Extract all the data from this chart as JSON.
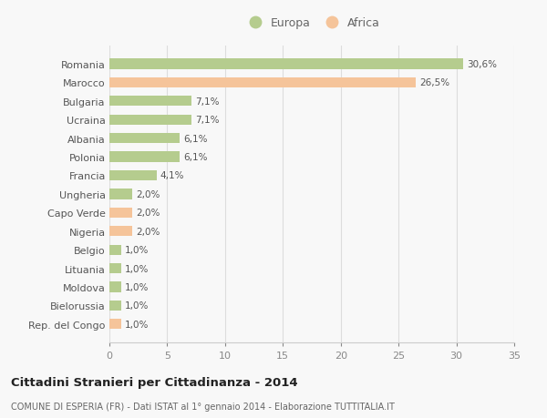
{
  "categories": [
    "Rep. del Congo",
    "Bielorussia",
    "Moldova",
    "Lituania",
    "Belgio",
    "Nigeria",
    "Capo Verde",
    "Ungheria",
    "Francia",
    "Polonia",
    "Albania",
    "Ucraina",
    "Bulgaria",
    "Marocco",
    "Romania"
  ],
  "values": [
    1.0,
    1.0,
    1.0,
    1.0,
    1.0,
    2.0,
    2.0,
    2.0,
    4.1,
    6.1,
    6.1,
    7.1,
    7.1,
    26.5,
    30.6
  ],
  "labels": [
    "1,0%",
    "1,0%",
    "1,0%",
    "1,0%",
    "1,0%",
    "2,0%",
    "2,0%",
    "2,0%",
    "4,1%",
    "6,1%",
    "6,1%",
    "7,1%",
    "7,1%",
    "26,5%",
    "30,6%"
  ],
  "colors": [
    "#f5c49a",
    "#b5cc8e",
    "#b5cc8e",
    "#b5cc8e",
    "#b5cc8e",
    "#f5c49a",
    "#f5c49a",
    "#b5cc8e",
    "#b5cc8e",
    "#b5cc8e",
    "#b5cc8e",
    "#b5cc8e",
    "#b5cc8e",
    "#f5c49a",
    "#b5cc8e"
  ],
  "europa_color": "#b5cc8e",
  "africa_color": "#f5c49a",
  "background_color": "#f8f8f8",
  "grid_color": "#dddddd",
  "title": "Cittadini Stranieri per Cittadinanza - 2014",
  "subtitle": "COMUNE DI ESPERIA (FR) - Dati ISTAT al 1° gennaio 2014 - Elaborazione TUTTITALIA.IT",
  "xlim": [
    0,
    35
  ],
  "xticks": [
    0,
    5,
    10,
    15,
    20,
    25,
    30,
    35
  ]
}
